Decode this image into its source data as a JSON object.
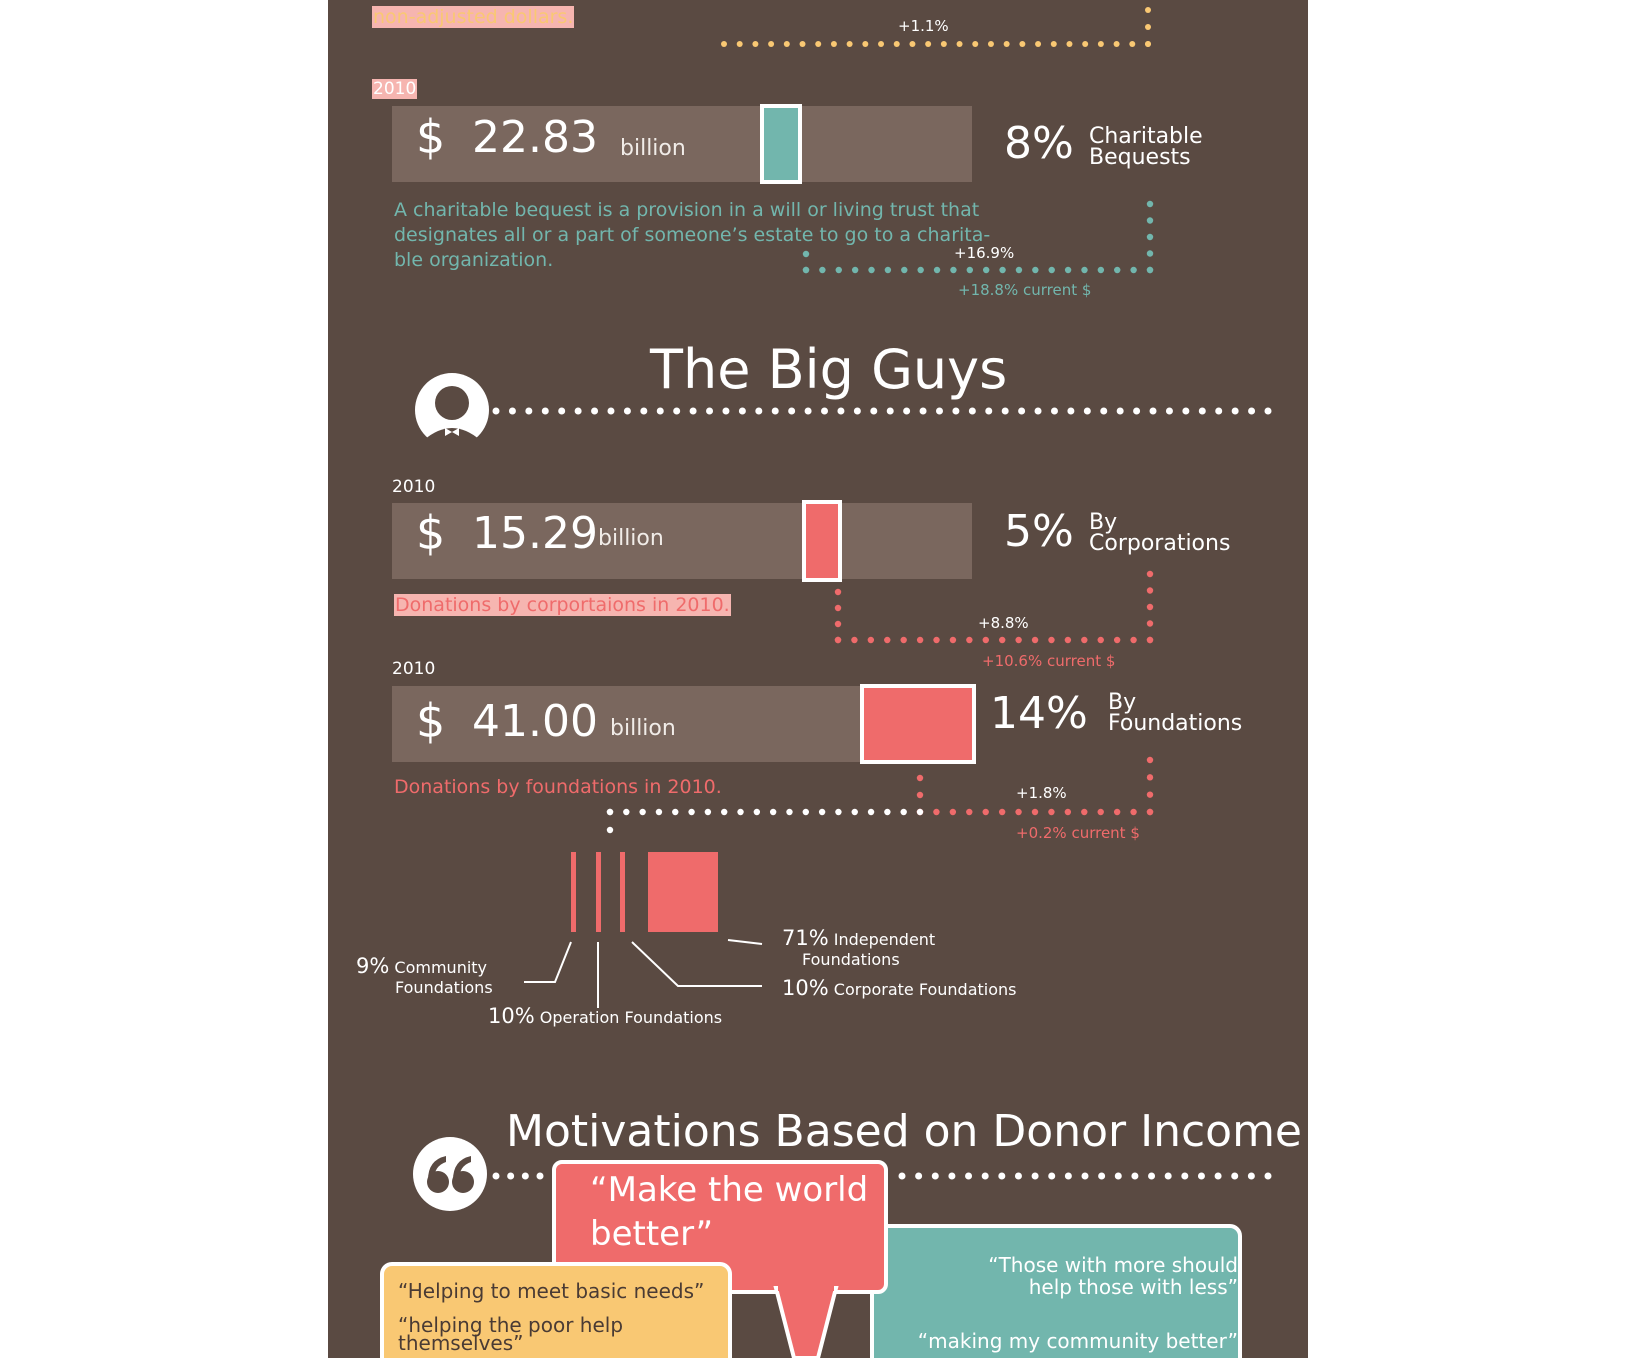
{
  "colors": {
    "background": "#5a4a42",
    "bar": "#7a675e",
    "teal": "#72b6ad",
    "red": "#ef6b6b",
    "yellow": "#f9c873",
    "pink_highlight": "#f6b5b0"
  },
  "top_fragment": {
    "note": "non-adjusted dollars.",
    "change": "+1.1%"
  },
  "bequests": {
    "year": "2010",
    "currency": "$",
    "amount": "22.83",
    "unit": "billion",
    "percent": "8%",
    "category_line1": "Charitable",
    "category_line2": "Bequests",
    "share": 0.08,
    "description_line1": "A charitable bequest is a provision in a will or living trust that",
    "description_line2": "designates all or a part of someone’s estate to go to a charita-",
    "description_line3": "ble organization.",
    "change": "+16.9%",
    "change_current": "+18.8% current $"
  },
  "big_guys": {
    "title": "The Big Guys",
    "icon": "person-icon"
  },
  "corporations": {
    "year": "2010",
    "currency": "$",
    "amount": "15.29",
    "unit": "billion",
    "percent": "5%",
    "category_line1": "By",
    "category_line2": "Corporations",
    "share": 0.05,
    "note": "Donations by corportaions in 2010.",
    "change": "+8.8%",
    "change_current": "+10.6% current $"
  },
  "foundations": {
    "year": "2010",
    "currency": "$",
    "amount": "41.00",
    "unit": "billion",
    "percent": "14%",
    "category_line1": "By",
    "category_line2": "Foundations",
    "share": 0.14,
    "note": "Donations by foundations in 2010.",
    "change": "+1.8%",
    "change_current": "+0.2% current $"
  },
  "foundation_breakdown": {
    "community_pct": "9%",
    "community_line1": "Community",
    "community_line2": "Foundations",
    "operation_pct": "10%",
    "operation_label": "Operation Foundations",
    "independent_pct": "71%",
    "independent_line1": "Independent",
    "independent_line2": "Foundations",
    "corporate_pct": "10%",
    "corporate_label": "Corporate Foundations"
  },
  "motivations": {
    "title": "Motivations Based on Donor Income",
    "icon": "quote-icon",
    "red_quote_line1": "“Make the world",
    "red_quote_line2": "better”",
    "yellow_quote1": "“Helping to meet basic needs”",
    "yellow_quote2_line1": "“helping the poor help",
    "yellow_quote2_line2": "themselves”",
    "teal_quote1_line1": "“Those with more should",
    "teal_quote1_line2": "help those with less”",
    "teal_quote2": "“making my community better”"
  }
}
